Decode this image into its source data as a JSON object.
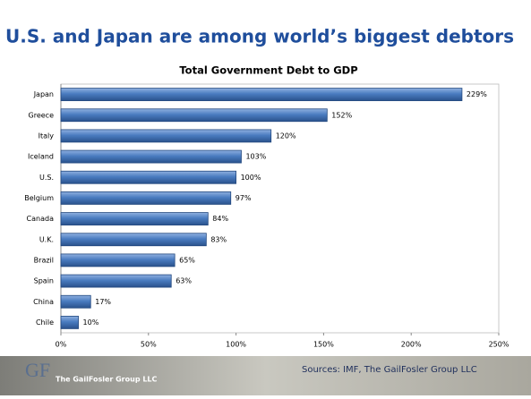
{
  "slide_title": "U.S. and Japan are among world’s biggest debtors",
  "footer": {
    "logo": "GF",
    "company": "The GailFosler Group LLC",
    "source": "Sources: IMF, The GailFosler Group LLC"
  },
  "chart_data": {
    "type": "bar",
    "orientation": "horizontal",
    "title": "Total Government Debt to GDP",
    "categories": [
      "Japan",
      "Greece",
      "Italy",
      "Iceland",
      "U.S.",
      "Belgium",
      "Canada",
      "U.K.",
      "Brazil",
      "Spain",
      "China",
      "Chile"
    ],
    "values": [
      229,
      152,
      120,
      103,
      100,
      97,
      84,
      83,
      65,
      63,
      17,
      10
    ],
    "value_labels": [
      "229%",
      "152%",
      "120%",
      "103%",
      "100%",
      "97%",
      "84%",
      "83%",
      "65%",
      "63%",
      "17%",
      "10%"
    ],
    "color": "#4a7cc0",
    "xlim": [
      0,
      250
    ],
    "xticks": [
      {
        "value": 0,
        "label": "0%"
      },
      {
        "value": 50,
        "label": "50%"
      },
      {
        "value": 100,
        "label": "100%"
      },
      {
        "value": 150,
        "label": "150%"
      },
      {
        "value": 200,
        "label": "200%"
      },
      {
        "value": 250,
        "label": "250%"
      }
    ],
    "grid": false
  }
}
